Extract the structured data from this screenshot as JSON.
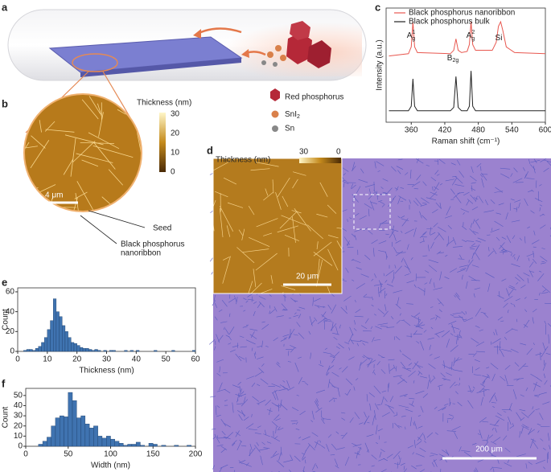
{
  "panel_labels": [
    "a",
    "b",
    "c",
    "d",
    "e",
    "f"
  ],
  "panel_a": {
    "legend": [
      "Red phosphorus",
      {
        "base": "SnI",
        "sub": "2"
      },
      "Sn"
    ]
  },
  "panel_b": {
    "colorbar_title": "Thickness (nm)",
    "colorbar_ticks": [
      30,
      20,
      10,
      0
    ],
    "scale_bar": "4 μm",
    "labels": [
      "Seed",
      [
        "Black phosphorus",
        "nanoribbon"
      ]
    ]
  },
  "panel_d": {
    "colorbar_title": "Thickness (nm)",
    "colorbar_ticks": [
      30,
      0
    ],
    "inset_scale_bar": "20 μm",
    "scale_bar": "200 μm"
  },
  "chart_data": [
    {
      "type": "line",
      "xlabel": "Raman shift (cm⁻¹)",
      "ylabel": "Intensity (a.u.)",
      "x": [
        320,
        355,
        360,
        363,
        366,
        371,
        430,
        436,
        440,
        444,
        450,
        460,
        464,
        467,
        470,
        475,
        505,
        512,
        516,
        520,
        524,
        530,
        545,
        600
      ],
      "xlim": [
        315,
        600
      ],
      "xticks": [
        360,
        420,
        480,
        540,
        600
      ],
      "ylim": [
        0,
        1
      ],
      "series": [
        {
          "name": "Black phosphorus nanoribbon",
          "color": "#e8574f",
          "values": [
            0.58,
            0.6,
            0.66,
            0.88,
            0.66,
            0.61,
            0.6,
            0.63,
            0.73,
            0.63,
            0.61,
            0.62,
            0.68,
            0.88,
            0.68,
            0.63,
            0.63,
            0.7,
            0.84,
            0.88,
            0.8,
            0.66,
            0.61,
            0.6
          ]
        },
        {
          "name": "Black phosphorus bulk",
          "color": "#222222",
          "values": [
            0.1,
            0.1,
            0.14,
            0.38,
            0.14,
            0.1,
            0.1,
            0.13,
            0.4,
            0.13,
            0.1,
            0.1,
            0.14,
            0.45,
            0.14,
            0.1,
            0.1,
            0.1,
            0.1,
            0.1,
            0.1,
            0.1,
            0.1,
            0.1
          ]
        }
      ],
      "annotations": [
        {
          "base": "A",
          "sup": "1",
          "sub": "g"
        },
        {
          "base": "B",
          "sub": "2g"
        },
        {
          "base": "A",
          "sup": "2",
          "sub": "g"
        },
        {
          "base": "Si"
        }
      ]
    },
    {
      "type": "histogram",
      "xlabel": "Thickness (nm)",
      "ylabel": "Count",
      "color": "#3f73b0",
      "bins": [
        0,
        1,
        2,
        3,
        4,
        5,
        6,
        7,
        8,
        9,
        10,
        11,
        12,
        13,
        14,
        15,
        16,
        17,
        18,
        19,
        20,
        21,
        22,
        23,
        24,
        25,
        26,
        27,
        28,
        29,
        30,
        31,
        32,
        33,
        34,
        35,
        36,
        37,
        38,
        39,
        40,
        41,
        42,
        43,
        44,
        45,
        46,
        47,
        48,
        49,
        50,
        51,
        52,
        53,
        54,
        55,
        56,
        57,
        58,
        59,
        60
      ],
      "values": [
        0,
        0,
        1,
        2,
        2,
        1,
        3,
        5,
        9,
        14,
        22,
        31,
        53,
        40,
        35,
        26,
        20,
        14,
        9,
        8,
        6,
        4,
        3,
        3,
        2,
        1,
        2,
        1,
        0,
        1,
        0,
        1,
        1,
        0,
        0,
        0,
        1,
        0,
        1,
        0,
        1,
        0,
        0,
        0,
        0,
        0,
        1,
        0,
        0,
        0,
        0,
        0,
        1,
        0,
        0,
        0,
        0,
        0,
        0,
        1
      ],
      "xlim": [
        0,
        60
      ],
      "xticks": [
        0,
        10,
        20,
        30,
        40,
        50,
        60
      ],
      "ylim": [
        0,
        64
      ],
      "yticks": [
        0,
        20,
        40,
        60
      ]
    },
    {
      "type": "histogram",
      "xlabel": "Width (nm)",
      "ylabel": "Count",
      "color": "#3f73b0",
      "bins": [
        0,
        5,
        10,
        15,
        20,
        25,
        30,
        35,
        40,
        45,
        50,
        55,
        60,
        65,
        70,
        75,
        80,
        85,
        90,
        95,
        100,
        105,
        110,
        115,
        120,
        125,
        130,
        135,
        140,
        145,
        150,
        155,
        160,
        165,
        170,
        175,
        180,
        185,
        190,
        195,
        200
      ],
      "values": [
        0,
        0,
        0,
        2,
        5,
        9,
        20,
        28,
        30,
        29,
        53,
        45,
        28,
        30,
        22,
        18,
        20,
        10,
        8,
        10,
        7,
        5,
        3,
        1,
        2,
        2,
        4,
        1,
        0,
        3,
        2,
        0,
        1,
        0,
        0,
        1,
        0,
        0,
        1,
        0
      ],
      "xlim": [
        0,
        200
      ],
      "xticks": [
        0,
        50,
        100,
        150,
        200
      ],
      "ylim": [
        0,
        57
      ],
      "yticks": [
        0,
        10,
        20,
        30,
        40,
        50
      ]
    }
  ]
}
